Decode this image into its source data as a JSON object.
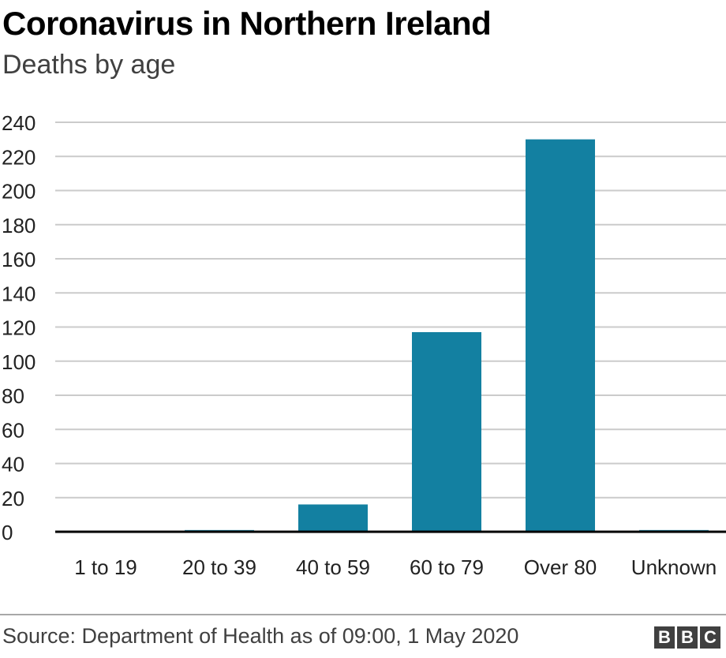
{
  "header": {
    "title": "Coronavirus in Northern Ireland",
    "subtitle": "Deaths by age"
  },
  "footer": {
    "source": "Source: Department of Health as of 09:00, 1 May 2020",
    "logo_letters": [
      "B",
      "B",
      "C"
    ]
  },
  "colors": {
    "bar": "#1380a1",
    "grid": "#cbcbcb",
    "baseline": "#000000"
  },
  "chart_data": {
    "type": "bar",
    "title": "Coronavirus in Northern Ireland",
    "subtitle": "Deaths by age",
    "categories": [
      "1 to 19",
      "20 to 39",
      "40 to 59",
      "60 to 79",
      "Over 80",
      "Unknown"
    ],
    "values": [
      0,
      1,
      16,
      117,
      230,
      1
    ],
    "ylim": [
      0,
      240
    ],
    "yticks": [
      0,
      20,
      40,
      60,
      80,
      100,
      120,
      140,
      160,
      180,
      200,
      220,
      240
    ],
    "xlabel": "",
    "ylabel": "",
    "grid": true,
    "legend": "none"
  }
}
